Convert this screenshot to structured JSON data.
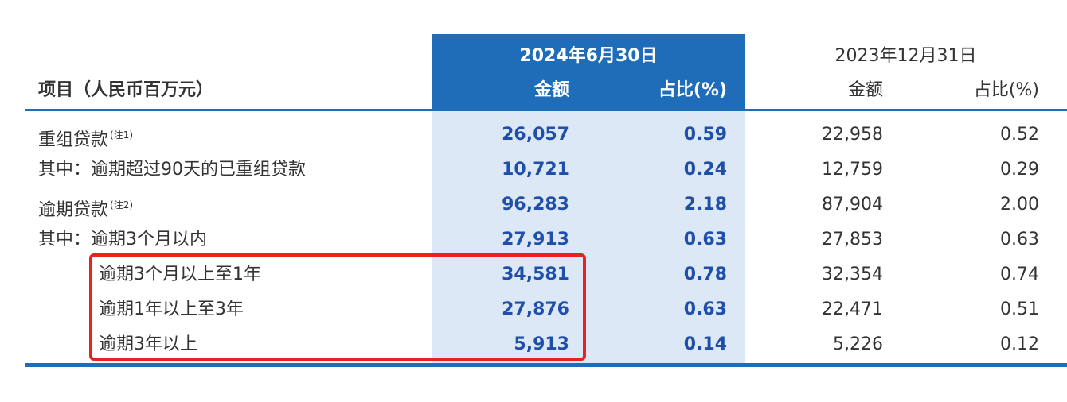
{
  "header": {
    "item_label": "项目（人民币百万元）",
    "date_current": "2024年6月30日",
    "date_prior": "2023年12月31日",
    "amount_label": "金额",
    "percent_label": "占比(%)"
  },
  "rows": [
    {
      "label": "重组贷款",
      "note": "(注1)",
      "amt_2024": "26,057",
      "pct_2024": "0.59",
      "amt_2023": "22,958",
      "pct_2023": "0.52"
    },
    {
      "label": "其中：逾期超过90天的已重组贷款",
      "note": "",
      "amt_2024": "10,721",
      "pct_2024": "0.24",
      "amt_2023": "12,759",
      "pct_2023": "0.29"
    },
    {
      "label": "逾期贷款",
      "note": "(注2)",
      "amt_2024": "96,283",
      "pct_2024": "2.18",
      "amt_2023": "87,904",
      "pct_2023": "2.00"
    },
    {
      "label": "其中：逾期3个月以内",
      "note": "",
      "amt_2024": "27,913",
      "pct_2024": "0.63",
      "amt_2023": "27,853",
      "pct_2023": "0.63"
    },
    {
      "label": "逾期3个月以上至1年",
      "note": "",
      "amt_2024": "34,581",
      "pct_2024": "0.78",
      "amt_2023": "32,354",
      "pct_2023": "0.74"
    },
    {
      "label": "逾期1年以上至3年",
      "note": "",
      "amt_2024": "27,876",
      "pct_2024": "0.63",
      "amt_2023": "22,471",
      "pct_2023": "0.51"
    },
    {
      "label": "逾期3年以上",
      "note": "",
      "amt_2024": "5,913",
      "pct_2024": "0.14",
      "amt_2023": "5,226",
      "pct_2023": "0.12"
    }
  ],
  "colors": {
    "accent_blue": "#1f6db8",
    "highlight_fill": "#dce8f5",
    "value_blue": "#1f4fa8",
    "annotation_red": "#e8231f"
  }
}
